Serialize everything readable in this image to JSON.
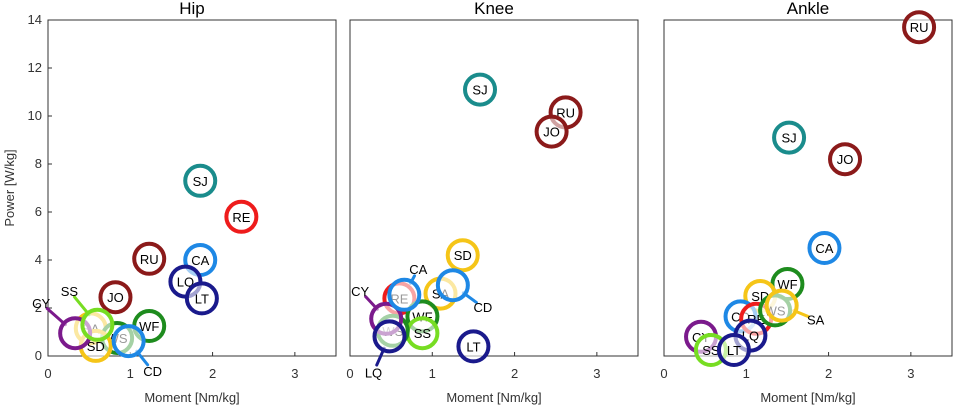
{
  "chart_data": [
    {
      "type": "scatter",
      "title": "Hip",
      "xlabel": "Moment [Nm/kg]",
      "ylabel": "Power [W/kg]",
      "xlim": [
        0,
        3.5
      ],
      "ylim": [
        0,
        14
      ],
      "xticks": [
        "0",
        "1",
        "2",
        "3"
      ],
      "yticks": [
        "0",
        "2",
        "4",
        "6",
        "8",
        "10",
        "12",
        "14"
      ],
      "points": [
        {
          "label": "SJ",
          "x": 1.85,
          "y": 7.3,
          "color": "#1a8c8c"
        },
        {
          "label": "RE",
          "x": 2.35,
          "y": 5.8,
          "color": "#ee1c1c"
        },
        {
          "label": "RU",
          "x": 1.23,
          "y": 4.05,
          "color": "#8b1a1a"
        },
        {
          "label": "CA",
          "x": 1.85,
          "y": 4.0,
          "color": "#1e88e5"
        },
        {
          "label": "LQ",
          "x": 1.67,
          "y": 3.1,
          "color": "#1a1a8c"
        },
        {
          "label": "LT",
          "x": 1.87,
          "y": 2.4,
          "color": "#1a1a8c"
        },
        {
          "label": "JO",
          "x": 0.82,
          "y": 2.45,
          "color": "#8b1a1a"
        },
        {
          "label": "WF",
          "x": 1.23,
          "y": 1.25,
          "color": "#1e8c1e"
        },
        {
          "label": "SA",
          "x": 0.52,
          "y": 1.15,
          "color": "#f5c518"
        },
        {
          "label": "WS",
          "x": 0.84,
          "y": 0.75,
          "color": "#1e8c1e"
        },
        {
          "label": "SD",
          "x": 0.58,
          "y": 0.42,
          "color": "#f5c518"
        },
        {
          "label": "CY",
          "x": 0.33,
          "y": 0.95,
          "color": "#7b1a8c",
          "text": "CY",
          "leader": true
        },
        {
          "label": "SS",
          "x": 0.6,
          "y": 1.3,
          "color": "#77dd22",
          "text": "SS",
          "leader": true
        },
        {
          "label": "CD",
          "x": 0.98,
          "y": 0.62,
          "color": "#1e88e5",
          "text": "CD",
          "leader": true
        }
      ]
    },
    {
      "type": "scatter",
      "title": "Knee",
      "xlabel": "Moment [Nm/kg]",
      "ylabel": "",
      "xlim": [
        0,
        3.5
      ],
      "ylim": [
        0,
        14
      ],
      "xticks": [
        "0",
        "1",
        "2",
        "3"
      ],
      "yticks": [],
      "points": [
        {
          "label": "SJ",
          "x": 1.58,
          "y": 11.1,
          "color": "#1a8c8c"
        },
        {
          "label": "RU",
          "x": 2.62,
          "y": 10.15,
          "color": "#8b1a1a"
        },
        {
          "label": "JO",
          "x": 2.45,
          "y": 9.35,
          "color": "#8b1a1a"
        },
        {
          "label": "SD",
          "x": 1.37,
          "y": 4.2,
          "color": "#f5c518"
        },
        {
          "label": "SA",
          "x": 1.1,
          "y": 2.6,
          "color": "#f5c518"
        },
        {
          "label": "RE",
          "x": 0.6,
          "y": 2.4,
          "color": "#ee1c1c"
        },
        {
          "label": "WF",
          "x": 0.88,
          "y": 1.65,
          "color": "#1e8c1e"
        },
        {
          "label": "SS",
          "x": 0.88,
          "y": 0.95,
          "color": "#77dd22"
        },
        {
          "label": "WS",
          "x": 0.52,
          "y": 1.05,
          "color": "#1e8c1e"
        },
        {
          "label": "LT",
          "x": 1.5,
          "y": 0.4,
          "color": "#1a1a8c"
        },
        {
          "label": "CY",
          "x": 0.44,
          "y": 1.55,
          "color": "#7b1a8c",
          "text": "CY",
          "leader": true
        },
        {
          "label": "CA",
          "x": 0.66,
          "y": 2.55,
          "color": "#1e88e5",
          "text": "CA",
          "leader": true
        },
        {
          "label": "CD",
          "x": 1.25,
          "y": 2.95,
          "color": "#1e88e5",
          "text": "CD",
          "leader": true
        },
        {
          "label": "LQ",
          "x": 0.48,
          "y": 0.82,
          "color": "#1a1a8c",
          "text": "LQ",
          "leader": true
        }
      ]
    },
    {
      "type": "scatter",
      "title": "Ankle",
      "xlabel": "Moment [Nm/kg]",
      "ylabel": "",
      "xlim": [
        0,
        3.5
      ],
      "ylim": [
        0,
        14
      ],
      "xticks": [
        "0",
        "1",
        "2",
        "3"
      ],
      "yticks": [],
      "points": [
        {
          "label": "RU",
          "x": 3.1,
          "y": 13.7,
          "color": "#8b1a1a"
        },
        {
          "label": "SJ",
          "x": 1.52,
          "y": 9.1,
          "color": "#1a8c8c"
        },
        {
          "label": "JO",
          "x": 2.2,
          "y": 8.2,
          "color": "#8b1a1a"
        },
        {
          "label": "CA",
          "x": 1.95,
          "y": 4.5,
          "color": "#1e88e5"
        },
        {
          "label": "WF",
          "x": 1.5,
          "y": 3.0,
          "color": "#1e8c1e"
        },
        {
          "label": "SD",
          "x": 1.17,
          "y": 2.5,
          "color": "#f5c518"
        },
        {
          "label": "CD",
          "x": 0.93,
          "y": 1.65,
          "color": "#1e88e5"
        },
        {
          "label": "RE",
          "x": 1.12,
          "y": 1.55,
          "color": "#ee1c1c"
        },
        {
          "label": "WS",
          "x": 1.35,
          "y": 1.9,
          "color": "#1e8c1e"
        },
        {
          "label": "LQ",
          "x": 1.05,
          "y": 0.85,
          "color": "#1a1a8c"
        },
        {
          "label": "CY",
          "x": 0.45,
          "y": 0.8,
          "color": "#7b1a8c"
        },
        {
          "label": "SS",
          "x": 0.57,
          "y": 0.25,
          "color": "#77dd22"
        },
        {
          "label": "LT",
          "x": 0.85,
          "y": 0.25,
          "color": "#1a1a8c"
        },
        {
          "label": "SA",
          "x": 1.43,
          "y": 2.1,
          "color": "#f5c518",
          "text": "SA",
          "leader": true
        }
      ]
    }
  ]
}
